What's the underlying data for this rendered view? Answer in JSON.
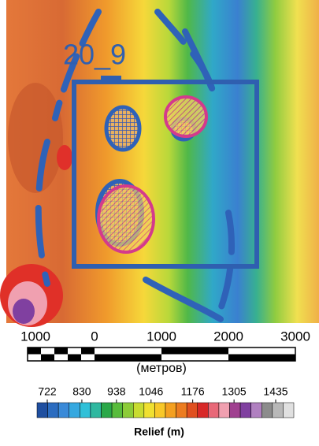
{
  "map": {
    "label": "20_9"
  },
  "scale_bar": {
    "labels": [
      "1000",
      "0",
      "1000",
      "2000",
      "3000"
    ],
    "unit": "(метров)"
  },
  "legend": {
    "ticks": [
      722,
      830,
      938,
      1046,
      1176,
      1305,
      1435
    ],
    "colors": [
      "#1f4fa0",
      "#2b6cc0",
      "#3a8ad8",
      "#35a8e0",
      "#30c0d8",
      "#2fb8a0",
      "#2aa848",
      "#58bc3c",
      "#8ccc38",
      "#c8dc30",
      "#f0e030",
      "#f8c828",
      "#f4a020",
      "#ec7c20",
      "#e05020",
      "#d82828",
      "#e86878",
      "#f0a0b0",
      "#a04090",
      "#8040a0",
      "#b080c0",
      "#8c8c8c",
      "#b8b8b8",
      "#e0e0e0"
    ],
    "title": "Relief (m)"
  }
}
